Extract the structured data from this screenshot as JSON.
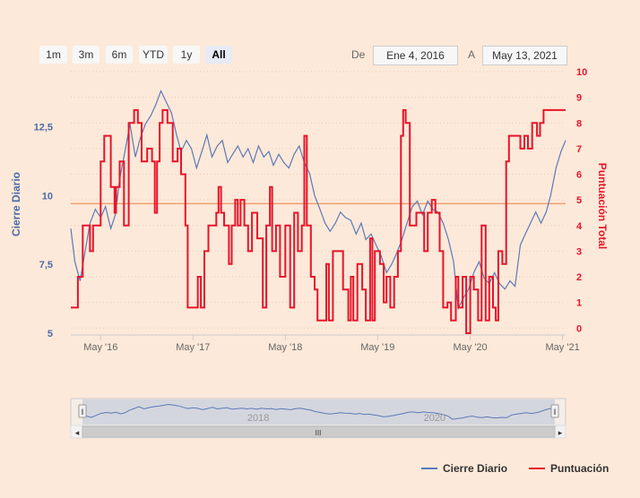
{
  "range_selector": {
    "buttons": [
      {
        "label": "1m",
        "active": false
      },
      {
        "label": "3m",
        "active": false
      },
      {
        "label": "6m",
        "active": false
      },
      {
        "label": "YTD",
        "active": false
      },
      {
        "label": "1y",
        "active": false
      },
      {
        "label": "All",
        "active": true
      }
    ],
    "from_label": "De",
    "from_value": "Ene 4, 2016",
    "to_label": "A",
    "to_value": "May 13, 2021"
  },
  "colors": {
    "series_close": "#5a7ab8",
    "series_score": "#e8142a",
    "left_axis_label": "#4a6aa8",
    "right_axis_label": "#e8142a",
    "plot_line": "#f0a070"
  },
  "chart_data": {
    "type": "line",
    "xlabel": "",
    "x_ticks": [
      "May '16",
      "May '17",
      "May '18",
      "May '19",
      "May '20",
      "May '21"
    ],
    "x_range": [
      "2016-01-04",
      "2021-05-13"
    ],
    "y_left": {
      "label": "Cierre Diario",
      "ticks": [
        "5",
        "7,5",
        "10",
        "12,5"
      ],
      "ylim": [
        5,
        14.5
      ]
    },
    "y_right": {
      "label": "Puntuación Total",
      "ticks": [
        "0",
        "1",
        "2",
        "3",
        "4",
        "5",
        "6",
        "7",
        "8",
        "9",
        "10"
      ],
      "ylim": [
        -0.2,
        10
      ]
    },
    "reference_line": {
      "axis": "right",
      "value": 4.85
    },
    "grid": false,
    "legend_position": "bottom-right",
    "series": [
      {
        "name": "Cierre Diario",
        "axis": "left",
        "points": [
          [
            "2016-01-04",
            8.8
          ],
          [
            "2016-01-20",
            7.6
          ],
          [
            "2016-02-10",
            6.9
          ],
          [
            "2016-03-01",
            8.0
          ],
          [
            "2016-03-20",
            9.0
          ],
          [
            "2016-04-10",
            9.5
          ],
          [
            "2016-05-01",
            9.2
          ],
          [
            "2016-05-20",
            9.6
          ],
          [
            "2016-06-10",
            8.8
          ],
          [
            "2016-06-28",
            9.3
          ],
          [
            "2016-07-15",
            10.6
          ],
          [
            "2016-08-05",
            11.6
          ],
          [
            "2016-08-25",
            12.6
          ],
          [
            "2016-09-15",
            11.4
          ],
          [
            "2016-10-05",
            12.1
          ],
          [
            "2016-10-25",
            12.6
          ],
          [
            "2016-11-15",
            12.9
          ],
          [
            "2016-12-05",
            13.3
          ],
          [
            "2016-12-25",
            13.8
          ],
          [
            "2017-01-15",
            13.4
          ],
          [
            "2017-02-05",
            13.0
          ],
          [
            "2017-02-25",
            12.2
          ],
          [
            "2017-03-15",
            11.6
          ],
          [
            "2017-04-05",
            12.0
          ],
          [
            "2017-04-25",
            11.7
          ],
          [
            "2017-05-15",
            11.0
          ],
          [
            "2017-06-05",
            11.6
          ],
          [
            "2017-06-25",
            12.2
          ],
          [
            "2017-07-15",
            11.4
          ],
          [
            "2017-08-05",
            11.8
          ],
          [
            "2017-08-25",
            12.0
          ],
          [
            "2017-09-15",
            11.2
          ],
          [
            "2017-10-05",
            11.5
          ],
          [
            "2017-10-25",
            11.8
          ],
          [
            "2017-11-15",
            11.4
          ],
          [
            "2017-12-05",
            11.7
          ],
          [
            "2017-12-25",
            11.2
          ],
          [
            "2018-01-15",
            11.8
          ],
          [
            "2018-02-05",
            11.4
          ],
          [
            "2018-02-25",
            11.6
          ],
          [
            "2018-03-15",
            11.1
          ],
          [
            "2018-04-05",
            11.5
          ],
          [
            "2018-04-25",
            11.2
          ],
          [
            "2018-05-15",
            11.0
          ],
          [
            "2018-06-05",
            11.5
          ],
          [
            "2018-06-25",
            11.8
          ],
          [
            "2018-07-15",
            11.2
          ],
          [
            "2018-08-05",
            10.8
          ],
          [
            "2018-08-25",
            10.0
          ],
          [
            "2018-09-15",
            9.5
          ],
          [
            "2018-10-05",
            9.0
          ],
          [
            "2018-10-25",
            8.7
          ],
          [
            "2018-11-15",
            9.0
          ],
          [
            "2018-12-05",
            9.4
          ],
          [
            "2018-12-25",
            9.2
          ],
          [
            "2019-01-15",
            9.1
          ],
          [
            "2019-02-05",
            8.6
          ],
          [
            "2019-02-25",
            9.0
          ],
          [
            "2019-03-15",
            8.4
          ],
          [
            "2019-04-05",
            8.6
          ],
          [
            "2019-04-25",
            8.2
          ],
          [
            "2019-05-15",
            7.8
          ],
          [
            "2019-06-05",
            7.2
          ],
          [
            "2019-06-25",
            7.5
          ],
          [
            "2019-07-15",
            7.9
          ],
          [
            "2019-08-05",
            8.4
          ],
          [
            "2019-08-25",
            9.0
          ],
          [
            "2019-09-15",
            9.6
          ],
          [
            "2019-10-05",
            9.8
          ],
          [
            "2019-10-25",
            9.3
          ],
          [
            "2019-11-15",
            9.8
          ],
          [
            "2019-12-05",
            9.5
          ],
          [
            "2019-12-25",
            9.4
          ],
          [
            "2020-01-15",
            9.0
          ],
          [
            "2020-02-05",
            8.4
          ],
          [
            "2020-02-25",
            7.6
          ],
          [
            "2020-03-15",
            5.9
          ],
          [
            "2020-04-05",
            6.3
          ],
          [
            "2020-04-25",
            6.6
          ],
          [
            "2020-05-15",
            7.2
          ],
          [
            "2020-06-05",
            7.6
          ],
          [
            "2020-06-25",
            7.0
          ],
          [
            "2020-07-15",
            6.8
          ],
          [
            "2020-08-05",
            7.2
          ],
          [
            "2020-08-25",
            6.8
          ],
          [
            "2020-09-15",
            6.6
          ],
          [
            "2020-10-05",
            6.9
          ],
          [
            "2020-10-25",
            6.7
          ],
          [
            "2020-11-15",
            8.2
          ],
          [
            "2020-12-05",
            8.6
          ],
          [
            "2020-12-25",
            9.0
          ],
          [
            "2021-01-15",
            9.4
          ],
          [
            "2021-02-05",
            9.0
          ],
          [
            "2021-02-25",
            9.4
          ],
          [
            "2021-03-15",
            10.0
          ],
          [
            "2021-04-05",
            11.0
          ],
          [
            "2021-04-25",
            11.6
          ],
          [
            "2021-05-13",
            12.0
          ]
        ]
      },
      {
        "name": "Puntuación",
        "axis": "right",
        "steps": [
          [
            "2016-01-04",
            0.8
          ],
          [
            "2016-02-01",
            2.0
          ],
          [
            "2016-02-20",
            4.0
          ],
          [
            "2016-03-20",
            3.0
          ],
          [
            "2016-04-01",
            4.0
          ],
          [
            "2016-05-01",
            6.5
          ],
          [
            "2016-05-15",
            7.5
          ],
          [
            "2016-06-10",
            5.5
          ],
          [
            "2016-06-25",
            4.5
          ],
          [
            "2016-07-01",
            5.5
          ],
          [
            "2016-07-15",
            6.5
          ],
          [
            "2016-08-01",
            4.0
          ],
          [
            "2016-08-20",
            8.0
          ],
          [
            "2016-09-10",
            8.5
          ],
          [
            "2016-09-25",
            8.0
          ],
          [
            "2016-10-10",
            6.5
          ],
          [
            "2016-11-01",
            7.0
          ],
          [
            "2016-11-20",
            6.5
          ],
          [
            "2016-12-01",
            4.5
          ],
          [
            "2016-12-10",
            6.5
          ],
          [
            "2016-12-20",
            8.0
          ],
          [
            "2017-01-01",
            8.5
          ],
          [
            "2017-01-20",
            8.0
          ],
          [
            "2017-02-10",
            6.5
          ],
          [
            "2017-03-01",
            7.0
          ],
          [
            "2017-03-15",
            6.0
          ],
          [
            "2017-04-01",
            4.0
          ],
          [
            "2017-04-10",
            0.8
          ],
          [
            "2017-05-01",
            0.8
          ],
          [
            "2017-05-20",
            2.0
          ],
          [
            "2017-06-01",
            0.8
          ],
          [
            "2017-06-15",
            3.0
          ],
          [
            "2017-07-01",
            4.0
          ],
          [
            "2017-08-01",
            4.5
          ],
          [
            "2017-08-10",
            5.5
          ],
          [
            "2017-08-20",
            4.5
          ],
          [
            "2017-09-01",
            4.0
          ],
          [
            "2017-09-20",
            2.5
          ],
          [
            "2017-10-01",
            4.0
          ],
          [
            "2017-10-15",
            5.0
          ],
          [
            "2017-10-25",
            4.0
          ],
          [
            "2017-11-05",
            5.0
          ],
          [
            "2017-11-20",
            4.0
          ],
          [
            "2017-12-05",
            3.0
          ],
          [
            "2017-12-20",
            4.5
          ],
          [
            "2018-01-10",
            3.5
          ],
          [
            "2018-02-01",
            0.8
          ],
          [
            "2018-02-15",
            4.0
          ],
          [
            "2018-03-01",
            5.5
          ],
          [
            "2018-03-10",
            3.0
          ],
          [
            "2018-03-25",
            4.0
          ],
          [
            "2018-04-10",
            2.0
          ],
          [
            "2018-05-01",
            4.0
          ],
          [
            "2018-05-20",
            0.8
          ],
          [
            "2018-06-05",
            4.5
          ],
          [
            "2018-06-20",
            3.0
          ],
          [
            "2018-07-05",
            4.0
          ],
          [
            "2018-07-15",
            7.5
          ],
          [
            "2018-07-25",
            4.0
          ],
          [
            "2018-08-10",
            2.0
          ],
          [
            "2018-08-25",
            1.5
          ],
          [
            "2018-09-05",
            0.3
          ],
          [
            "2018-09-20",
            0.3
          ],
          [
            "2018-10-10",
            2.5
          ],
          [
            "2018-10-20",
            0.3
          ],
          [
            "2018-11-05",
            3.0
          ],
          [
            "2018-11-20",
            3.0
          ],
          [
            "2018-12-15",
            1.5
          ],
          [
            "2019-01-05",
            0.3
          ],
          [
            "2019-01-15",
            2.0
          ],
          [
            "2019-01-25",
            0.3
          ],
          [
            "2019-02-10",
            2.5
          ],
          [
            "2019-03-01",
            1.5
          ],
          [
            "2019-03-15",
            0.3
          ],
          [
            "2019-04-01",
            3.5
          ],
          [
            "2019-04-10",
            0.3
          ],
          [
            "2019-04-20",
            3.0
          ],
          [
            "2019-05-10",
            2.5
          ],
          [
            "2019-05-25",
            1.0
          ],
          [
            "2019-06-05",
            2.0
          ],
          [
            "2019-06-20",
            0.8
          ],
          [
            "2019-07-05",
            2.0
          ],
          [
            "2019-07-20",
            3.0
          ],
          [
            "2019-08-01",
            7.5
          ],
          [
            "2019-08-10",
            8.5
          ],
          [
            "2019-08-20",
            8.0
          ],
          [
            "2019-09-05",
            4.0
          ],
          [
            "2019-10-01",
            4.5
          ],
          [
            "2019-10-15",
            4.5
          ],
          [
            "2019-11-01",
            3.0
          ],
          [
            "2019-11-15",
            4.5
          ],
          [
            "2019-12-01",
            5.0
          ],
          [
            "2019-12-15",
            4.5
          ],
          [
            "2020-01-01",
            3.0
          ],
          [
            "2020-01-15",
            0.8
          ],
          [
            "2020-02-01",
            1.0
          ],
          [
            "2020-02-15",
            0.3
          ],
          [
            "2020-03-05",
            2.0
          ],
          [
            "2020-03-15",
            0.8
          ],
          [
            "2020-04-01",
            2.0
          ],
          [
            "2020-04-15",
            -0.2
          ],
          [
            "2020-05-01",
            2.0
          ],
          [
            "2020-05-15",
            1.5
          ],
          [
            "2020-06-01",
            0.3
          ],
          [
            "2020-06-15",
            4.0
          ],
          [
            "2020-07-01",
            0.3
          ],
          [
            "2020-07-15",
            2.0
          ],
          [
            "2020-07-30",
            0.8
          ],
          [
            "2020-08-10",
            0.3
          ],
          [
            "2020-08-20",
            3.0
          ],
          [
            "2020-09-05",
            2.5
          ],
          [
            "2020-09-20",
            6.5
          ],
          [
            "2020-10-01",
            7.5
          ],
          [
            "2020-10-15",
            7.5
          ],
          [
            "2020-11-01",
            7.5
          ],
          [
            "2020-11-15",
            7.0
          ],
          [
            "2020-12-01",
            7.5
          ],
          [
            "2020-12-15",
            7.0
          ],
          [
            "2021-01-01",
            8.0
          ],
          [
            "2021-01-20",
            7.5
          ],
          [
            "2021-02-01",
            8.0
          ],
          [
            "2021-02-15",
            8.5
          ],
          [
            "2021-05-13",
            8.5
          ]
        ]
      }
    ]
  },
  "navigator": {
    "labels": [
      "2018",
      "2020"
    ],
    "scroll_left": "◂",
    "scroll_right": "▸",
    "scroll_grip": "III",
    "handle_glyph": "‖"
  }
}
